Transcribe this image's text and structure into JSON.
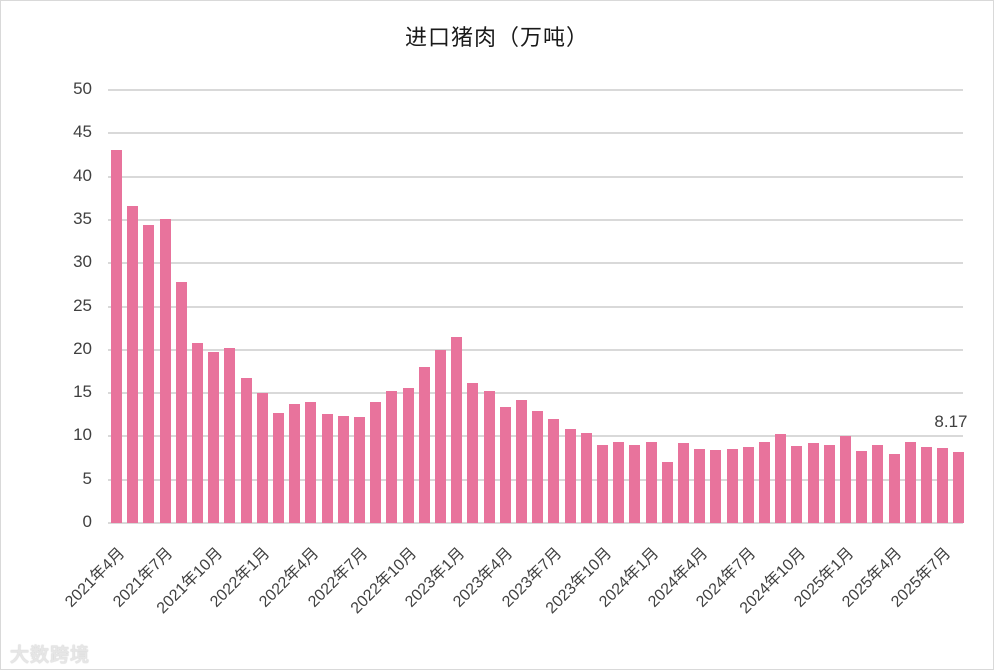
{
  "chart_data": {
    "type": "bar",
    "title": "进口猪肉（万吨）",
    "xlabel": "",
    "ylabel": "",
    "ylim": [
      0,
      50
    ],
    "yticks": [
      0,
      5,
      10,
      15,
      20,
      25,
      30,
      35,
      40,
      45,
      50
    ],
    "grid": true,
    "legend": null,
    "bar_color": "#e8739c",
    "categories": [
      "2021年4月",
      "2021年5月",
      "2021年6月",
      "2021年7月",
      "2021年8月",
      "2021年9月",
      "2021年10月",
      "2021年11月",
      "2021年12月",
      "2022年1月",
      "2022年2月",
      "2022年3月",
      "2022年4月",
      "2022年5月",
      "2022年6月",
      "2022年7月",
      "2022年8月",
      "2022年9月",
      "2022年10月",
      "2022年11月",
      "2022年12月",
      "2023年1月",
      "2023年2月",
      "2023年3月",
      "2023年4月",
      "2023年5月",
      "2023年6月",
      "2023年7月",
      "2023年8月",
      "2023年9月",
      "2023年10月",
      "2023年11月",
      "2023年12月",
      "2024年1月",
      "2024年2月",
      "2024年3月",
      "2024年4月",
      "2024年5月",
      "2024年6月",
      "2024年7月",
      "2024年8月",
      "2024年9月",
      "2024年10月",
      "2024年11月",
      "2024年12月",
      "2025年1月",
      "2025年2月",
      "2025年3月",
      "2025年4月",
      "2025年5月",
      "2025年6月",
      "2025年7月",
      "2025年8月"
    ],
    "values": [
      43.1,
      36.6,
      34.4,
      35.1,
      27.8,
      20.8,
      19.7,
      20.2,
      16.7,
      15.0,
      12.7,
      13.7,
      14.0,
      12.6,
      12.3,
      12.2,
      14.0,
      15.3,
      15.6,
      18.0,
      20.0,
      21.5,
      16.2,
      15.2,
      13.4,
      14.2,
      12.9,
      12.0,
      10.9,
      10.4,
      9.0,
      9.3,
      9.0,
      9.3,
      7.0,
      9.2,
      8.6,
      8.4,
      8.5,
      8.8,
      9.3,
      10.3,
      8.9,
      9.2,
      9.0,
      10.0,
      8.3,
      9.0,
      8.0,
      9.3,
      8.8,
      8.7,
      8.17
    ],
    "visible_tick_labels": [
      "2021年4月",
      "2021年7月",
      "2021年10月",
      "2022年1月",
      "2022年4月",
      "2022年7月",
      "2022年10月",
      "2023年1月",
      "2023年4月",
      "2023年7月",
      "2023年10月",
      "2024年1月",
      "2024年4月",
      "2024年7月",
      "2024年10月",
      "2025年1月",
      "2025年4月",
      "2025年7月"
    ],
    "annotations": [
      {
        "category": "2025年8月",
        "text": "8.17"
      }
    ]
  },
  "watermark": "大数跨境"
}
